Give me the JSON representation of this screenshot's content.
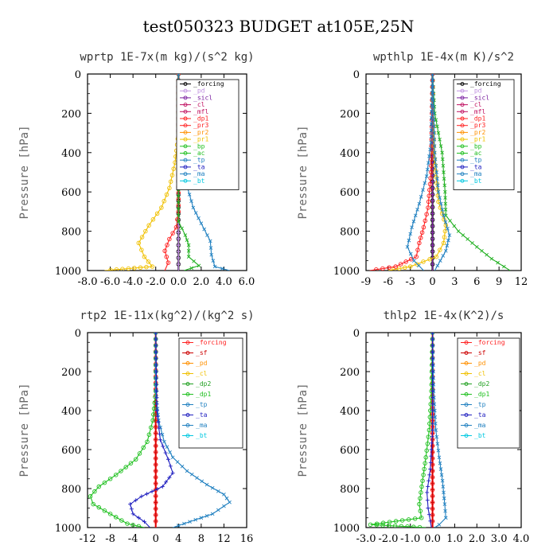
{
  "figure_title": "test050323  BUDGET at105E,25N",
  "chart_data": [
    {
      "type": "line",
      "title": "wprtp  1E-7x(m kg)/(s^2 kg)",
      "ylabel": "Pressure [hPa]",
      "xlim": [
        -8,
        6
      ],
      "ylim": [
        1000,
        0
      ],
      "xticks": [
        "-8.0",
        "-6.0",
        "-4.0",
        "-2.0",
        "0.0",
        "2.0",
        "4.0",
        "6.0"
      ],
      "xtick_values": [
        -8,
        -6,
        -4,
        -2,
        0,
        2,
        4,
        6
      ],
      "yticks": [
        "0",
        "200",
        "400",
        "600",
        "800",
        "1000"
      ],
      "ytick_values": [
        0,
        200,
        400,
        600,
        800,
        1000
      ],
      "legend": [
        "_forcing",
        "_pd",
        "_sicl",
        "_cl",
        "_mfl",
        "_dp1",
        "_pr3",
        "_pr2",
        "_pr1",
        "_bp",
        "_ac",
        "_tp",
        "_ta",
        "_ma",
        "_bt"
      ],
      "series": [
        {
          "name": "_forcing",
          "color": "#000000",
          "marker": "o",
          "points": [
            [
              0,
              0
            ],
            [
              0,
              1000
            ]
          ]
        },
        {
          "name": "_sicl",
          "color": "#7a1fa0",
          "marker": "+",
          "points": [
            [
              0,
              0
            ],
            [
              0,
              1000
            ]
          ]
        },
        {
          "name": "_pd",
          "color": "#c090e0",
          "marker": "+",
          "points": [
            [
              0,
              0
            ],
            [
              0,
              1000
            ]
          ]
        },
        {
          "name": "_pr1",
          "color": "#f0c000",
          "marker": "o",
          "points": [
            [
              0,
              0
            ],
            [
              0,
              300
            ],
            [
              -0.3,
              450
            ],
            [
              -0.8,
              580
            ],
            [
              -1.5,
              680
            ],
            [
              -2.6,
              770
            ],
            [
              -3.5,
              860
            ],
            [
              -3.0,
              930
            ],
            [
              -2.3,
              980
            ],
            [
              -6.5,
              1000
            ]
          ]
        },
        {
          "name": "_dp1",
          "color": "#ff2020",
          "marker": "o",
          "points": [
            [
              0,
              0
            ],
            [
              0,
              700
            ],
            [
              -0.2,
              780
            ],
            [
              -0.8,
              840
            ],
            [
              -1.2,
              900
            ],
            [
              -0.9,
              960
            ],
            [
              -1.2,
              1000
            ]
          ]
        },
        {
          "name": "_ac",
          "color": "#20b020",
          "marker": "x",
          "points": [
            [
              0,
              0
            ],
            [
              0,
              750
            ],
            [
              0.6,
              820
            ],
            [
              0.9,
              870
            ],
            [
              0.9,
              930
            ],
            [
              1.8,
              975
            ],
            [
              0.5,
              1000
            ]
          ]
        },
        {
          "name": "_tp",
          "color": "#2080c0",
          "marker": "x",
          "points": [
            [
              0,
              0
            ],
            [
              0,
              300
            ],
            [
              0.3,
              450
            ],
            [
              0.8,
              580
            ],
            [
              1.3,
              680
            ],
            [
              2.0,
              760
            ],
            [
              2.8,
              850
            ],
            [
              2.9,
              920
            ],
            [
              3.2,
              980
            ],
            [
              4.5,
              1000
            ]
          ]
        }
      ]
    },
    {
      "type": "line",
      "title": "wpthlp  1E-4x(m K)/s^2",
      "ylabel": "Pressure [hPa]",
      "xlim": [
        -9,
        12
      ],
      "ylim": [
        1000,
        0
      ],
      "xticks": [
        "-9",
        "-6",
        "-3",
        "0",
        "3",
        "6",
        "9",
        "12"
      ],
      "xtick_values": [
        -9,
        -6,
        -3,
        0,
        3,
        6,
        9,
        12
      ],
      "yticks": [
        "0",
        "200",
        "400",
        "600",
        "800",
        "1000"
      ],
      "ytick_values": [
        0,
        200,
        400,
        600,
        800,
        1000
      ],
      "legend": [
        "_forcing",
        "_pd",
        "_sicl",
        "_cl",
        "_mfl",
        "_dp1",
        "_pr3",
        "_pr2",
        "_pr1",
        "_bp",
        "_ac",
        "_tp",
        "_ta",
        "_ma",
        "_bt"
      ],
      "series": [
        {
          "name": "_forcing",
          "color": "#000000",
          "marker": "o",
          "points": [
            [
              0,
              0
            ],
            [
              0,
              1000
            ]
          ]
        },
        {
          "name": "_pd",
          "color": "#c090e0",
          "marker": "+",
          "points": [
            [
              0,
              0
            ],
            [
              0,
              1000
            ]
          ]
        },
        {
          "name": "_sicl",
          "color": "#7a1fa0",
          "marker": "+",
          "points": [
            [
              0,
              0
            ],
            [
              0,
              1000
            ]
          ]
        },
        {
          "name": "_pr1",
          "color": "#f0c000",
          "marker": "o",
          "points": [
            [
              0,
              0
            ],
            [
              0.2,
              400
            ],
            [
              0.8,
              650
            ],
            [
              1.8,
              770
            ],
            [
              1.5,
              860
            ],
            [
              0.5,
              930
            ],
            [
              -3,
              980
            ],
            [
              -6,
              1000
            ]
          ]
        },
        {
          "name": "_ac",
          "color": "#20b020",
          "marker": "x",
          "points": [
            [
              0,
              0
            ],
            [
              0.3,
              200
            ],
            [
              1.3,
              400
            ],
            [
              1.7,
              600
            ],
            [
              1.8,
              720
            ],
            [
              3.5,
              800
            ],
            [
              6,
              880
            ],
            [
              8,
              940
            ],
            [
              10.5,
              1000
            ]
          ]
        },
        {
          "name": "_dp1",
          "color": "#ff2020",
          "marker": "o",
          "points": [
            [
              0,
              0
            ],
            [
              -0.2,
              500
            ],
            [
              -0.6,
              680
            ],
            [
              -1.2,
              780
            ],
            [
              -1.8,
              860
            ],
            [
              -2.2,
              930
            ],
            [
              -5,
              980
            ],
            [
              -8.5,
              1000
            ]
          ]
        },
        {
          "name": "_tp",
          "color": "#2080c0",
          "marker": "x",
          "points": [
            [
              0,
              0
            ],
            [
              -0.2,
              350
            ],
            [
              -0.8,
              520
            ],
            [
              -1.8,
              660
            ],
            [
              -2.8,
              780
            ],
            [
              -3.4,
              880
            ],
            [
              -2.5,
              950
            ],
            [
              -1.2,
              1000
            ]
          ]
        },
        {
          "name": "_bp",
          "color": "#2080c0",
          "marker": "x",
          "points": [
            [
              0,
              0
            ],
            [
              0.3,
              400
            ],
            [
              0.8,
              600
            ],
            [
              1.5,
              720
            ],
            [
              2.3,
              820
            ],
            [
              1.8,
              900
            ],
            [
              0.3,
              1000
            ]
          ]
        }
      ]
    },
    {
      "type": "line",
      "title": "rtp2  1E-11x(kg^2)/(kg^2 s)",
      "ylabel": "Pressure [hPa]",
      "xlim": [
        -12,
        16
      ],
      "ylim": [
        1000,
        0
      ],
      "xticks": [
        "-12",
        "-8",
        "-4",
        "0",
        "4",
        "8",
        "12",
        "16"
      ],
      "xtick_values": [
        -12,
        -8,
        -4,
        0,
        4,
        8,
        12,
        16
      ],
      "yticks": [
        "0",
        "200",
        "400",
        "600",
        "800",
        "1000"
      ],
      "ytick_values": [
        0,
        200,
        400,
        600,
        800,
        1000
      ],
      "legend": [
        "_forcing",
        "_sf",
        "_pd",
        "_cl",
        "_dp2",
        "_dp1",
        "_tp",
        "_ta",
        "_ma",
        "_bt"
      ],
      "series": [
        {
          "name": "_forcing",
          "color": "#ff2020",
          "marker": "o",
          "points": [
            [
              0,
              0
            ],
            [
              0,
              1000
            ]
          ]
        },
        {
          "name": "_sf",
          "color": "#cc0000",
          "marker": "+",
          "points": [
            [
              0,
              0
            ],
            [
              0,
              1000
            ]
          ]
        },
        {
          "name": "_dp1",
          "color": "#20c020",
          "marker": "o",
          "points": [
            [
              0,
              0
            ],
            [
              0,
              300
            ],
            [
              -0.5,
              450
            ],
            [
              -1.5,
              560
            ],
            [
              -3.5,
              650
            ],
            [
              -7,
              730
            ],
            [
              -10,
              790
            ],
            [
              -11.5,
              840
            ],
            [
              -11,
              880
            ],
            [
              -8,
              930
            ],
            [
              -5,
              980
            ],
            [
              -2,
              1000
            ]
          ]
        },
        {
          "name": "_tp",
          "color": "#2080c0",
          "marker": "x",
          "points": [
            [
              0,
              0
            ],
            [
              0,
              300
            ],
            [
              0.5,
              450
            ],
            [
              1.5,
              560
            ],
            [
              3,
              640
            ],
            [
              5.5,
              710
            ],
            [
              9,
              780
            ],
            [
              12,
              830
            ],
            [
              13,
              870
            ],
            [
              10,
              930
            ],
            [
              6,
              970
            ],
            [
              3,
              1000
            ]
          ]
        },
        {
          "name": "_ta",
          "color": "#2020c0",
          "marker": "+",
          "points": [
            [
              0,
              0
            ],
            [
              0.2,
              400
            ],
            [
              0.8,
              550
            ],
            [
              2.2,
              650
            ],
            [
              3,
              720
            ],
            [
              1.2,
              790
            ],
            [
              -2.5,
              840
            ],
            [
              -4.5,
              880
            ],
            [
              -4,
              930
            ],
            [
              -2,
              970
            ],
            [
              -1,
              1000
            ]
          ]
        }
      ]
    },
    {
      "type": "line",
      "title": "thlp2  1E-4x(K^2)/s",
      "ylabel": "Pressure [hPa]",
      "xlim": [
        -3,
        4
      ],
      "ylim": [
        1000,
        0
      ],
      "xticks": [
        "-3.0",
        "-2.0",
        "-1.0",
        "0.0",
        "1.0",
        "2.0",
        "3.0",
        "4.0"
      ],
      "xtick_values": [
        -3,
        -2,
        -1,
        0,
        1,
        2,
        3,
        4
      ],
      "yticks": [
        "0",
        "200",
        "400",
        "600",
        "800",
        "1000"
      ],
      "ytick_values": [
        0,
        200,
        400,
        600,
        800,
        1000
      ],
      "legend": [
        "_forcing",
        "_sf",
        "_pd",
        "_cl",
        "_dp2",
        "_dp1",
        "_tp",
        "_ta",
        "_ma",
        "_bt"
      ],
      "series": [
        {
          "name": "_forcing",
          "color": "#ff2020",
          "marker": "o",
          "points": [
            [
              0,
              0
            ],
            [
              0,
              1000
            ]
          ]
        },
        {
          "name": "_sf",
          "color": "#cc0000",
          "marker": "+",
          "points": [
            [
              0,
              0
            ],
            [
              0,
              1000
            ]
          ]
        },
        {
          "name": "_dp1",
          "color": "#20c020",
          "marker": "o",
          "points": [
            [
              0,
              0
            ],
            [
              -0.05,
              300
            ],
            [
              -0.15,
              500
            ],
            [
              -0.3,
              640
            ],
            [
              -0.45,
              760
            ],
            [
              -0.6,
              880
            ],
            [
              -0.5,
              950
            ],
            [
              -2.8,
              985
            ],
            [
              -0.3,
              1000
            ]
          ]
        },
        {
          "name": "_tp",
          "color": "#2080c0",
          "marker": "x",
          "points": [
            [
              0,
              0
            ],
            [
              0.05,
              300
            ],
            [
              0.15,
              500
            ],
            [
              0.3,
              640
            ],
            [
              0.45,
              760
            ],
            [
              0.55,
              880
            ],
            [
              0.6,
              950
            ],
            [
              0.3,
              985
            ],
            [
              0.1,
              1000
            ]
          ]
        },
        {
          "name": "_ta",
          "color": "#2020c0",
          "marker": "+",
          "points": [
            [
              0,
              0
            ],
            [
              0,
              500
            ],
            [
              -0.1,
              700
            ],
            [
              -0.25,
              820
            ],
            [
              -0.2,
              900
            ],
            [
              -0.05,
              1000
            ]
          ]
        }
      ]
    }
  ]
}
